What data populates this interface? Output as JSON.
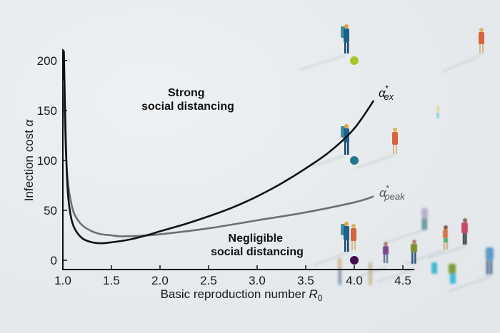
{
  "chart_data": {
    "type": "line",
    "title": "",
    "xlabel": "Basic reproduction number R0",
    "xlabel_main": "Basic reproduction number ",
    "xlabel_var": "R",
    "xlabel_sub": "0",
    "ylabel": "Infection cost α",
    "ylabel_main": "Infection cost ",
    "ylabel_var": "α",
    "xlim": [
      1.0,
      4.6
    ],
    "ylim": [
      0,
      210
    ],
    "xticks": [
      "1.0",
      "1.5",
      "2.0",
      "2.5",
      "3.0",
      "3.5",
      "4.0",
      "4.5"
    ],
    "yticks": [
      "0",
      "50",
      "100",
      "150",
      "200"
    ],
    "grid": false,
    "series": [
      {
        "name": "α*ex",
        "label_base": "α",
        "label_sup": "*",
        "label_sub": "ex",
        "color": "#111111",
        "x": [
          1.01,
          1.03,
          1.05,
          1.08,
          1.12,
          1.2,
          1.3,
          1.4,
          1.5,
          1.7,
          1.9,
          2.0,
          2.25,
          2.5,
          2.75,
          3.0,
          3.25,
          3.5,
          3.75,
          4.0,
          4.2
        ],
        "y": [
          210,
          120,
          70,
          45,
          32,
          22,
          18,
          17,
          18,
          21,
          26,
          29,
          36,
          44,
          53,
          64,
          77,
          92,
          109,
          132,
          160
        ]
      },
      {
        "name": "α*peak",
        "label_base": "α",
        "label_sup": "*",
        "label_sub": "peak",
        "color": "#6e6e6e",
        "x": [
          1.01,
          1.03,
          1.05,
          1.08,
          1.12,
          1.2,
          1.3,
          1.4,
          1.5,
          1.6,
          1.8,
          2.0,
          2.5,
          3.0,
          3.5,
          4.0,
          4.2
        ],
        "y": [
          180,
          110,
          80,
          60,
          46,
          35,
          29,
          26,
          25,
          24,
          24.5,
          26,
          32,
          40,
          48,
          58,
          64
        ]
      }
    ],
    "points": [
      {
        "x": 4.0,
        "y": 200,
        "color": "#a7c52a",
        "name": "high-cost-dot"
      },
      {
        "x": 4.0,
        "y": 100,
        "color": "#1f7b8a",
        "name": "mid-cost-dot"
      },
      {
        "x": 4.0,
        "y": 0,
        "color": "#3f0a4f",
        "name": "low-cost-dot"
      }
    ],
    "annotations": [
      {
        "lines": [
          "Strong",
          "social distancing"
        ],
        "x": 2.3,
        "y": 155
      },
      {
        "lines": [
          "Negligible",
          "social distancing"
        ],
        "x": 3.25,
        "y": 15
      }
    ]
  }
}
